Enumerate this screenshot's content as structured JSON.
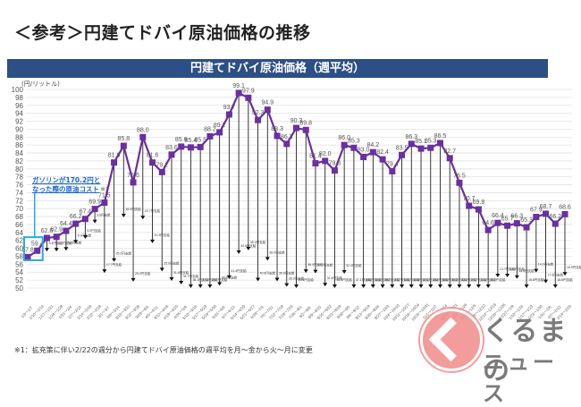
{
  "page": {
    "title": "＜参考＞円建てドバイ原油価格の推移",
    "banner": "円建てドバイ原油価格（週平均）",
    "unit": "(円/リットル)",
    "callout": [
      "ガソリンが170.2円と",
      "なった際の原油コスト"
    ],
    "footnote": "※1：拡充策に伴い2/22の週分から円建てドバイ原油価格の週平均を月～金から火～月に変更",
    "logo_line1": "くるまの",
    "logo_line2": "ニュース",
    "logo_icon": "chevron-left-icon"
  },
  "chart_data": {
    "type": "line",
    "title": "円建てドバイ原油価格（週平均）",
    "ylabel": "(円/リットル)",
    "xlabel": "",
    "ylim": [
      50,
      100
    ],
    "ytick_step": 2,
    "grid": true,
    "series_color": "#6a2fa0",
    "highlight_box_color": "#29a8e0",
    "annotation_marker": "※1",
    "x": [
      "1/3～1/7",
      "1/10～1/14",
      "1/17～1/21",
      "1/24～1/28",
      "1/31～2/4",
      "2/7～2/10",
      "2/14～2/18",
      "2/22～2/28",
      "3/1～3/7",
      "3/8～3/14",
      "3/15～3/21",
      "3/22～3/28",
      "3/29～4/4",
      "4/5～4/11",
      "4/12～4/18",
      "4/19～4/25",
      "4/26～5/9",
      "5/10～5/16",
      "5/17～5/23",
      "5/24～5/30",
      "5/31～6/6",
      "6/7～6/13",
      "6/14～6/20",
      "6/21～6/27",
      "6/28～7/4",
      "7/5～7/11",
      "7/12～7/18",
      "7/19～7/25",
      "7/26～8/1",
      "8/2～8/8",
      "8/9～8/15",
      "8/16～8/22",
      "8/23～8/29",
      "8/30～9/5",
      "9/6～9/12",
      "9/13～9/19",
      "9/20～9/26",
      "9/27～10/3",
      "10/4～10/10",
      "10/11～10/17",
      "10/18～10/24",
      "10/25～10/31",
      "11/1～11/7",
      "11/8～11/14",
      "11/15～11/21",
      "11/22～11/28",
      "11/29～12/5",
      "12/6～12/12",
      "12/13～12/19",
      "12/20～12/26",
      "12/27～1/9",
      "1/10～1/16",
      "1/17～1/23",
      "1/24～1/30",
      "1/31～2/6",
      "2/7～2/13",
      "2/14～2/20"
    ],
    "series": [
      {
        "name": "円建てドバイ原油価格",
        "values": [
          57.8,
          59.4,
          62.6,
          62.9,
          64.4,
          66.2,
          67.4,
          69.9,
          71.5,
          81.6,
          85.8,
          76.6,
          88.0,
          81.6,
          79.2,
          83.6,
          85.6,
          85.4,
          85.5,
          88.2,
          89.2,
          93.7,
          99.1,
          97.9,
          92.3,
          94.9,
          88.3,
          86.3,
          90.3,
          89.8,
          81.4,
          82.0,
          79.6,
          86.0,
          85.3,
          83.0,
          84.2,
          82.4,
          79.4,
          83.5,
          86.3,
          85.1,
          85.3,
          86.5,
          82.7,
          76.5,
          70.7,
          69.8,
          64.6,
          66.4,
          65.7,
          66.3,
          65.3,
          67.9,
          68.7,
          66.2,
          68.6
        ]
      }
    ],
    "subsidy_label_suffix": "円支給",
    "subsidies": [
      null,
      null,
      3.4,
      3.7,
      5.0,
      5.0,
      5.0,
      3.6,
      17.7,
      25.0,
      18.0,
      25.0,
      20.7,
      20.3,
      25.0,
      31.8,
      34.7,
      36.1,
      37.3,
      38.7,
      38.6,
      41.4,
      40.5,
      38.4,
      40.6,
      38.0,
      36.6,
      36.0,
      40.6,
      36.0,
      27.7,
      31.6,
      33.6,
      32.4,
      37.1,
      36.6,
      36.6,
      38.7,
      33.7,
      33.6,
      36.8,
      37.2,
      38.4,
      38.6,
      36.3,
      32.3,
      25.7,
      20.0,
      18.7,
      13.7,
      13.0,
      14.0,
      15.6,
      14.0,
      17.5,
      18.6,
      15.5
    ]
  }
}
